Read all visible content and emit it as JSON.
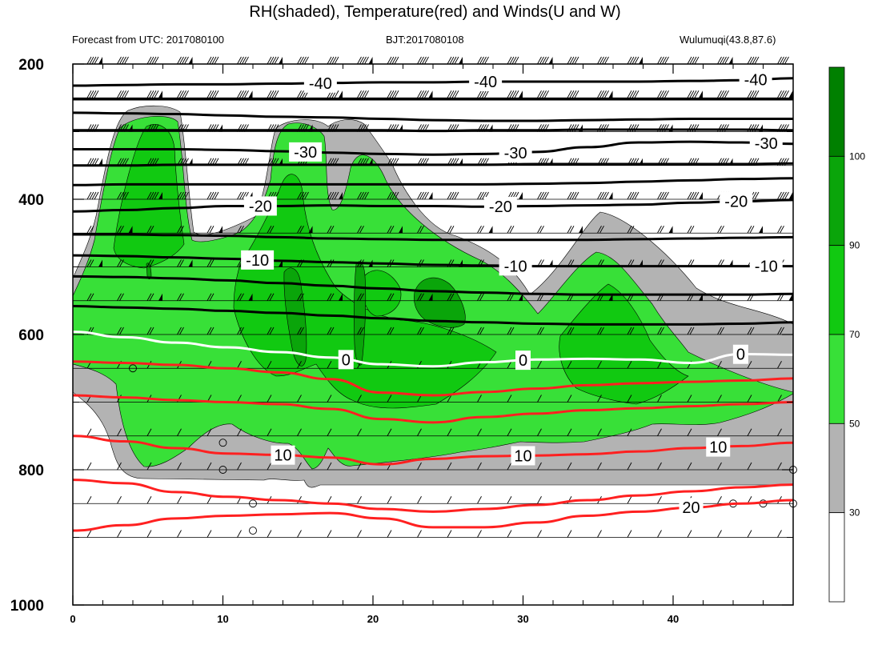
{
  "title": "RH(shaded), Temperature(red) and Winds(U and W)",
  "subtitle_left": "Forecast from UTC: 2017080100",
  "subtitle_center": "BJT:2017080108",
  "subtitle_right": "Wulumuqi(43.8,87.6)",
  "chart_data": {
    "type": "contour",
    "x_axis": {
      "range": [
        0,
        48
      ],
      "ticks": [
        0,
        10,
        20,
        30,
        40
      ]
    },
    "y_axis": {
      "range": [
        200,
        1000
      ],
      "ticks": [
        200,
        400,
        600,
        800,
        1000
      ],
      "inverted": true
    },
    "pressure_levels": [
      200,
      250,
      300,
      350,
      400,
      450,
      500,
      550,
      600,
      650,
      700,
      750,
      800,
      850,
      900
    ],
    "rh_colorbar": {
      "levels": [
        30,
        50,
        70,
        90,
        100
      ],
      "colors": [
        "#ffffff",
        "#b3b3b3",
        "#38e038",
        "#11c911",
        "#0aa50a",
        "#008000"
      ]
    },
    "temperature_contours": [
      {
        "value": -40,
        "color": "#000000",
        "y": [
          232,
          231,
          230,
          230,
          229,
          228,
          227,
          227,
          226,
          226,
          226,
          226,
          225,
          224,
          221
        ],
        "labels": [
          {
            "x": 16.5,
            "text": "-40"
          },
          {
            "x": 27.5,
            "text": "-40"
          },
          {
            "x": 45.5,
            "text": "-40"
          }
        ]
      },
      {
        "value": -40,
        "color": "#000000",
        "y": [
          252,
          252,
          252,
          252,
          252,
          252,
          252,
          252,
          252,
          252,
          252,
          252,
          252,
          252,
          252
        ]
      },
      {
        "value": -40,
        "color": "#000000",
        "y": [
          272,
          273,
          274,
          276,
          278,
          279,
          281,
          283,
          284,
          284,
          283,
          282,
          281,
          281,
          281
        ]
      },
      {
        "value": -30,
        "color": "#000000",
        "y": [
          298,
          298,
          298,
          298,
          298,
          298,
          298,
          299,
          298,
          298,
          297,
          297,
          297,
          297,
          298
        ]
      },
      {
        "value": -30,
        "color": "#000000",
        "y": [
          326,
          326,
          326,
          327,
          329,
          331,
          333,
          334,
          333,
          330,
          323,
          316,
          315,
          316,
          318
        ],
        "labels": [
          {
            "x": 15.5,
            "text": "-30"
          },
          {
            "x": 29.5,
            "text": "-30"
          },
          {
            "x": 46.2,
            "text": "-30"
          }
        ]
      },
      {
        "value": -30,
        "color": "#000000",
        "y": [
          350,
          350,
          349,
          349,
          349,
          349,
          349,
          349,
          349,
          348,
          348,
          348,
          348,
          348,
          347
        ]
      },
      {
        "value": -20,
        "color": "#000000",
        "y": [
          379,
          378,
          378,
          378,
          378,
          378,
          378,
          378,
          378,
          377,
          376,
          374,
          372,
          370,
          369
        ]
      },
      {
        "value": -20,
        "color": "#000000",
        "y": [
          418,
          416,
          413,
          410,
          410,
          409,
          410,
          410,
          411,
          410,
          409,
          408,
          405,
          403,
          401
        ],
        "labels": [
          {
            "x": 12.5,
            "text": "-20"
          },
          {
            "x": 28.5,
            "text": "-20"
          },
          {
            "x": 44.2,
            "text": "-20"
          }
        ]
      },
      {
        "value": -20,
        "color": "#000000",
        "y": [
          452,
          452,
          453,
          454,
          456,
          458,
          459,
          460,
          460,
          460,
          460,
          459,
          458,
          457,
          456
        ]
      },
      {
        "value": -10,
        "color": "#000000",
        "y": [
          483,
          484,
          486,
          488,
          491,
          493,
          495,
          497,
          498,
          499,
          499,
          499,
          499,
          499,
          499
        ],
        "labels": [
          {
            "x": 12.3,
            "text": "-10"
          },
          {
            "x": 29.5,
            "text": "-10"
          },
          {
            "x": 46.2,
            "text": "-10"
          }
        ]
      },
      {
        "value": -10,
        "color": "#000000",
        "y": [
          514,
          515,
          517,
          520,
          524,
          528,
          532,
          536,
          538,
          540,
          541,
          541,
          541,
          541,
          540
        ]
      },
      {
        "value": -10,
        "color": "#000000",
        "y": [
          558,
          560,
          562,
          565,
          568,
          572,
          576,
          580,
          582,
          584,
          585,
          585,
          585,
          584,
          582
        ]
      },
      {
        "value": 0,
        "color": "#ffffff",
        "y": [
          596,
          604,
          612,
          619,
          626,
          634,
          644,
          647,
          641,
          637,
          636,
          637,
          642,
          629,
          630
        ],
        "labels": [
          {
            "x": 18.2,
            "text": "0"
          },
          {
            "x": 30,
            "text": "0"
          },
          {
            "x": 44.5,
            "text": "0"
          }
        ]
      },
      {
        "value": 10,
        "color": "#ff2020",
        "y": [
          640,
          642,
          645,
          650,
          656,
          666,
          686,
          690,
          685,
          680,
          675,
          672,
          670,
          668,
          665
        ]
      },
      {
        "value": 10,
        "color": "#ff2020",
        "y": [
          690,
          693,
          697,
          700,
          703,
          710,
          725,
          730,
          722,
          717,
          712,
          709,
          706,
          703,
          700
        ]
      },
      {
        "value": 10,
        "color": "#ff2020",
        "y": [
          750,
          758,
          768,
          776,
          778,
          782,
          792,
          784,
          780,
          779,
          777,
          773,
          768,
          765,
          760
        ],
        "labels": [
          {
            "x": 14,
            "text": "10"
          },
          {
            "x": 30,
            "text": "10"
          },
          {
            "x": 43,
            "text": "10"
          }
        ]
      },
      {
        "value": 20,
        "color": "#ff2020",
        "y": [
          815,
          820,
          833,
          840,
          845,
          850,
          858,
          862,
          858,
          852,
          845,
          838,
          832,
          826,
          822
        ]
      },
      {
        "value": 20,
        "color": "#ff2020",
        "y": [
          890,
          882,
          872,
          868,
          866,
          864,
          872,
          885,
          885,
          878,
          868,
          862,
          856,
          850,
          845
        ],
        "labels": [
          {
            "x": 41.2,
            "text": "20"
          }
        ]
      }
    ]
  }
}
